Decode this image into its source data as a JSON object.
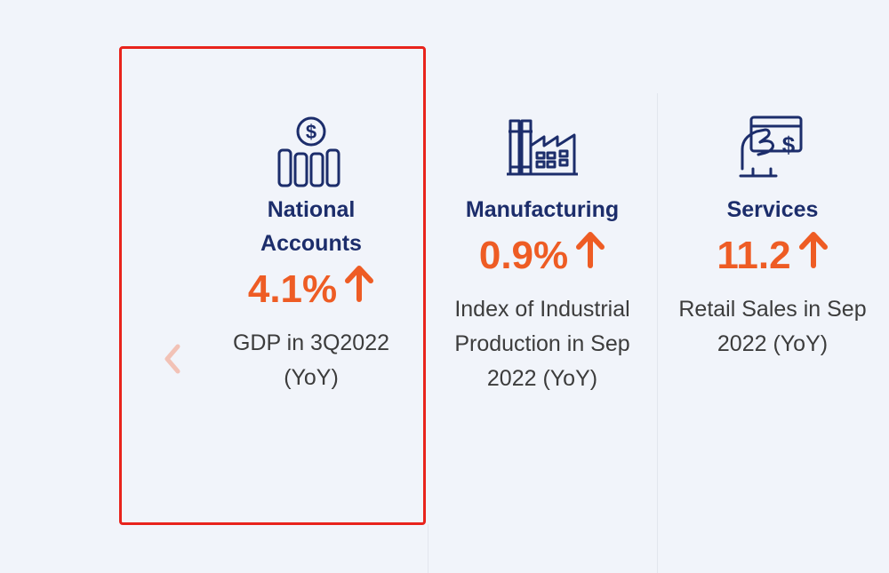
{
  "indicators": [
    {
      "icon": "dollar-pillars-icon",
      "title_line1": "National",
      "title_line2": "Accounts",
      "value": "4.1%",
      "trend": "up",
      "desc_line1": "GDP in 3Q2022",
      "desc_line2": "(YoY)"
    },
    {
      "icon": "factory-icon",
      "title_line1": "Manufacturing",
      "value": "0.9%",
      "trend": "up",
      "desc_line1": "Index of Industrial",
      "desc_line2": "Production in Sep",
      "desc_line3": "2022 (YoY)"
    },
    {
      "icon": "card-payment-icon",
      "title_line1": "Services",
      "value": "11.2",
      "trend": "up",
      "desc_line1": "Retail Sales in Sep",
      "desc_line2": "2022 (YoY)"
    }
  ],
  "carousel": {
    "prev_icon": "chevron-left-icon"
  },
  "colors": {
    "title": "#1c2d6b",
    "value": "#ee5c24",
    "icon": "#1c2d6b",
    "highlight_border": "#e8231c",
    "background": "#f1f4fa"
  }
}
